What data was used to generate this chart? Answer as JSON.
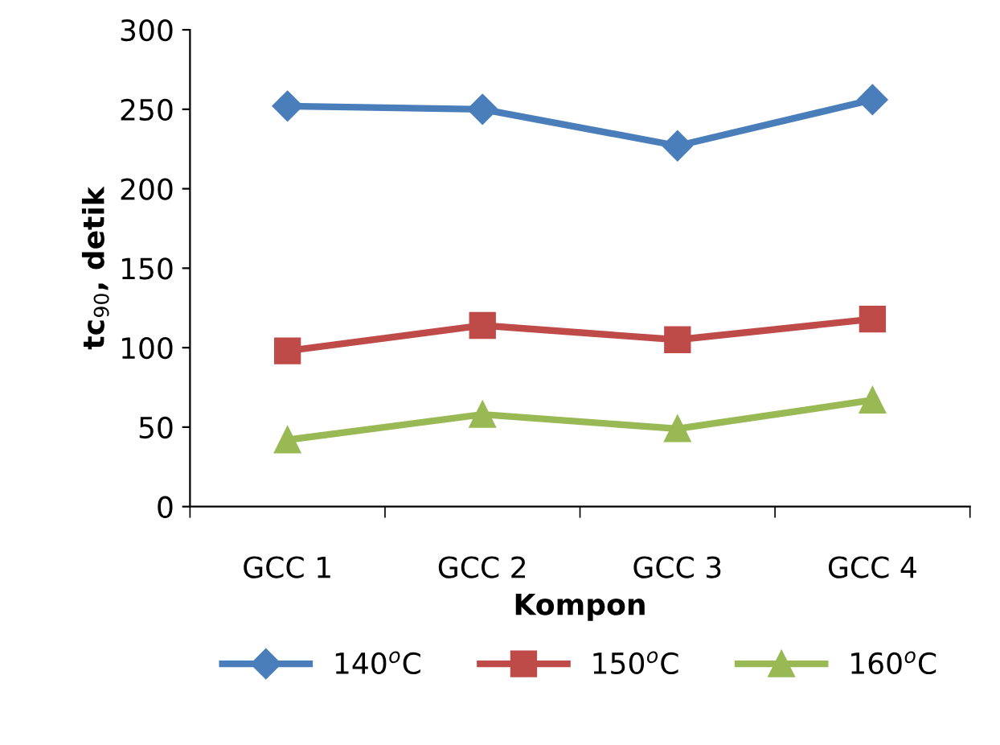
{
  "chart_data": {
    "type": "line",
    "xlabel": "Kompon",
    "ylabel": "tc$_{90}$, detik",
    "categories": [
      "GCC 1",
      "GCC 2",
      "GCC 3",
      "GCC 4"
    ],
    "series": [
      {
        "name": "140$^{o}$C",
        "color": "#4a7ebb",
        "marker": "diamond",
        "values": [
          252,
          250,
          227,
          256
        ]
      },
      {
        "name": "150$^{o}$C",
        "color": "#be4b48",
        "marker": "square",
        "values": [
          98,
          114,
          105,
          118
        ]
      },
      {
        "name": "160$^{o}$C",
        "color": "#98b954",
        "marker": "triangle",
        "values": [
          42,
          58,
          49,
          67
        ]
      }
    ],
    "ylim": [
      0,
      300
    ],
    "yticks": [
      0,
      50,
      100,
      150,
      200,
      250,
      300
    ],
    "grid": false,
    "legend": "bottom"
  }
}
